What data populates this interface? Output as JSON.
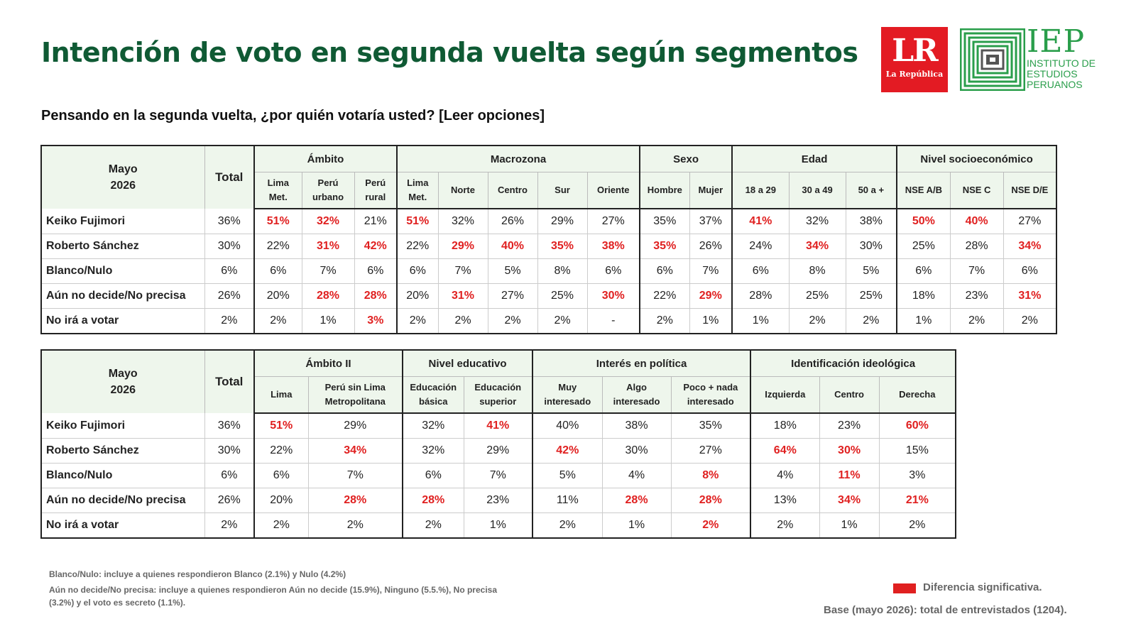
{
  "title": "Intención de voto en segunda vuelta según segmentos",
  "question": "Pensando en la segunda vuelta, ¿por quién votaría usted? [Leer opciones]",
  "logos": {
    "lr_big": "LR",
    "lr_small": "La República",
    "iep_big": "IEP",
    "iep_line1": "INSTITUTO DE",
    "iep_line2": "ESTUDIOS",
    "iep_line3": "PERUANOS"
  },
  "colors": {
    "title_green": "#0f5a34",
    "significant_red": "#e02020",
    "header_bg": "#eef6ec",
    "iep_green": "#2a9e4b"
  },
  "table1": {
    "corner_line1": "Mayo",
    "corner_line2": "2026",
    "total_label": "Total",
    "groups": [
      {
        "label": "Ámbito",
        "subs": [
          [
            "Lima",
            "Met."
          ],
          [
            "Perú",
            "urbano"
          ],
          [
            "Perú",
            "rural"
          ]
        ]
      },
      {
        "label": "Macrozona",
        "subs": [
          [
            "Lima",
            "Met."
          ],
          [
            "Norte"
          ],
          [
            "Centro"
          ],
          [
            "Sur"
          ],
          [
            "Oriente"
          ]
        ]
      },
      {
        "label": "Sexo",
        "subs": [
          [
            "Hombre"
          ],
          [
            "Mujer"
          ]
        ]
      },
      {
        "label": "Edad",
        "subs": [
          [
            "18 a 29"
          ],
          [
            "30 a 49"
          ],
          [
            "50 a +"
          ]
        ]
      },
      {
        "label": "Nivel socioeconómico",
        "subs": [
          [
            "NSE A/B"
          ],
          [
            "NSE C"
          ],
          [
            "NSE D/E"
          ]
        ]
      }
    ],
    "rows": [
      {
        "label": "Keiko Fujimori",
        "total": "36%",
        "values": [
          "51%",
          "32%",
          "21%",
          "51%",
          "32%",
          "26%",
          "29%",
          "27%",
          "35%",
          "37%",
          "41%",
          "32%",
          "38%",
          "50%",
          "40%",
          "27%"
        ],
        "highlight": [
          true,
          true,
          false,
          true,
          false,
          false,
          false,
          false,
          false,
          false,
          true,
          false,
          false,
          true,
          true,
          false
        ]
      },
      {
        "label": "Roberto Sánchez",
        "total": "30%",
        "values": [
          "22%",
          "31%",
          "42%",
          "22%",
          "29%",
          "40%",
          "35%",
          "38%",
          "35%",
          "26%",
          "24%",
          "34%",
          "30%",
          "25%",
          "28%",
          "34%"
        ],
        "highlight": [
          false,
          true,
          true,
          false,
          true,
          true,
          true,
          true,
          true,
          false,
          false,
          true,
          false,
          false,
          false,
          true
        ]
      },
      {
        "label": "Blanco/Nulo",
        "total": "6%",
        "values": [
          "6%",
          "7%",
          "6%",
          "6%",
          "7%",
          "5%",
          "8%",
          "6%",
          "6%",
          "7%",
          "6%",
          "8%",
          "5%",
          "6%",
          "7%",
          "6%"
        ],
        "highlight": [
          false,
          false,
          false,
          false,
          false,
          false,
          false,
          false,
          false,
          false,
          false,
          false,
          false,
          false,
          false,
          false
        ]
      },
      {
        "label": "Aún no decide/No precisa",
        "total": "26%",
        "values": [
          "20%",
          "28%",
          "28%",
          "20%",
          "31%",
          "27%",
          "25%",
          "30%",
          "22%",
          "29%",
          "28%",
          "25%",
          "25%",
          "18%",
          "23%",
          "31%"
        ],
        "highlight": [
          false,
          true,
          true,
          false,
          true,
          false,
          false,
          true,
          false,
          true,
          false,
          false,
          false,
          false,
          false,
          true
        ]
      },
      {
        "label": "No irá a votar",
        "total": "2%",
        "values": [
          "2%",
          "1%",
          "3%",
          "2%",
          "2%",
          "2%",
          "2%",
          "-",
          "2%",
          "1%",
          "1%",
          "2%",
          "2%",
          "1%",
          "2%",
          "2%"
        ],
        "highlight": [
          false,
          false,
          true,
          false,
          false,
          false,
          false,
          false,
          false,
          false,
          false,
          false,
          false,
          false,
          false,
          false
        ]
      }
    ]
  },
  "table2": {
    "corner_line1": "Mayo",
    "corner_line2": "2026",
    "total_label": "Total",
    "groups": [
      {
        "label": "Ámbito II",
        "subs": [
          [
            "Lima"
          ],
          [
            "Perú sin Lima",
            "Metropolitana"
          ]
        ]
      },
      {
        "label": "Nivel educativo",
        "subs": [
          [
            "Educación",
            "básica"
          ],
          [
            "Educación",
            "superior"
          ]
        ]
      },
      {
        "label": "Interés en política",
        "subs": [
          [
            "Muy",
            "interesado"
          ],
          [
            "Algo",
            "interesado"
          ],
          [
            "Poco + nada",
            "interesado"
          ]
        ]
      },
      {
        "label": "Identificación ideológica",
        "subs": [
          [
            "Izquierda"
          ],
          [
            "Centro"
          ],
          [
            "Derecha"
          ]
        ]
      }
    ],
    "rows": [
      {
        "label": "Keiko Fujimori",
        "total": "36%",
        "values": [
          "51%",
          "29%",
          "32%",
          "41%",
          "40%",
          "38%",
          "35%",
          "18%",
          "23%",
          "60%"
        ],
        "highlight": [
          true,
          false,
          false,
          true,
          false,
          false,
          false,
          false,
          false,
          true
        ]
      },
      {
        "label": "Roberto Sánchez",
        "total": "30%",
        "values": [
          "22%",
          "34%",
          "32%",
          "29%",
          "42%",
          "30%",
          "27%",
          "64%",
          "30%",
          "15%"
        ],
        "highlight": [
          false,
          true,
          false,
          false,
          true,
          false,
          false,
          true,
          true,
          false
        ]
      },
      {
        "label": "Blanco/Nulo",
        "total": "6%",
        "values": [
          "6%",
          "7%",
          "6%",
          "7%",
          "5%",
          "4%",
          "8%",
          "4%",
          "11%",
          "3%"
        ],
        "highlight": [
          false,
          false,
          false,
          false,
          false,
          false,
          true,
          false,
          true,
          false
        ]
      },
      {
        "label": "Aún no decide/No precisa",
        "total": "26%",
        "values": [
          "20%",
          "28%",
          "28%",
          "23%",
          "11%",
          "28%",
          "28%",
          "13%",
          "34%",
          "21%"
        ],
        "highlight": [
          false,
          true,
          true,
          false,
          false,
          true,
          true,
          false,
          true,
          true
        ]
      },
      {
        "label": "No irá a votar",
        "total": "2%",
        "values": [
          "2%",
          "2%",
          "2%",
          "1%",
          "2%",
          "1%",
          "2%",
          "2%",
          "1%",
          "2%"
        ],
        "highlight": [
          false,
          false,
          false,
          false,
          false,
          false,
          true,
          false,
          false,
          false
        ]
      }
    ]
  },
  "notes": {
    "blanco_nulo": "Blanco/Nulo: incluye a quienes respondieron Blanco (2.1%) y Nulo (4.2%)",
    "aun_no_decide_line1": "Aún no decide/No precisa: incluye a quienes respondieron Aún no decide (15.9%), Ninguno (5.5.%), No precisa",
    "aun_no_decide_line2": "(3.2%) y el voto es secreto (1.1%)."
  },
  "legend": {
    "label": "Diferencia significativa."
  },
  "base": "Base (mayo 2026): total de entrevistados (1204)."
}
